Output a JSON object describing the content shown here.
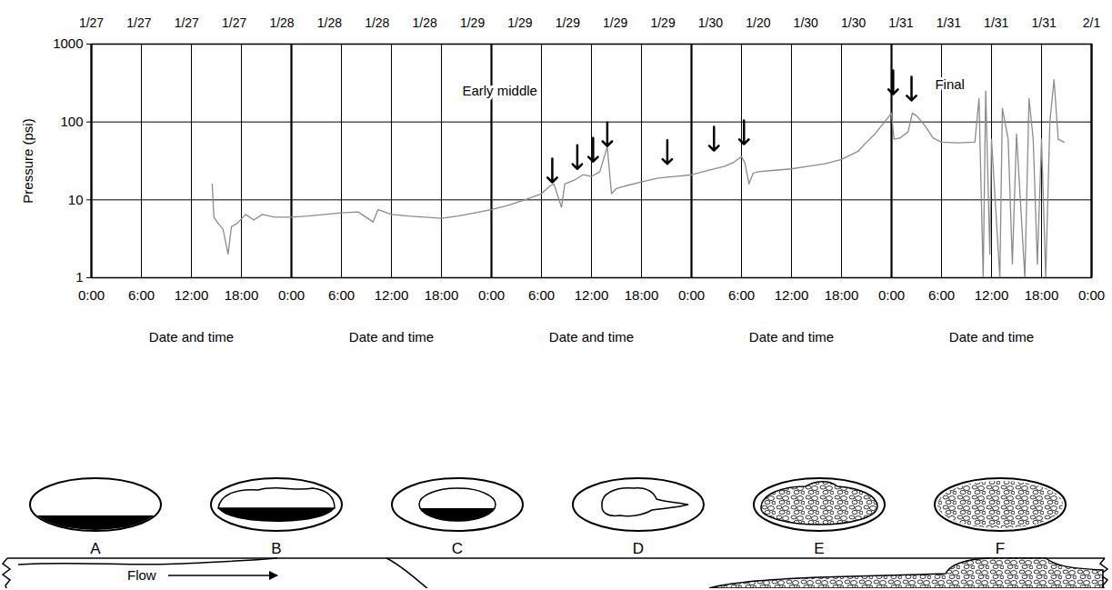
{
  "chart_data": {
    "type": "line",
    "top_labels": [
      "1/27",
      "1/27",
      "1/27",
      "1/27",
      "1/28",
      "1/28",
      "1/28",
      "1/28",
      "1/29",
      "1/29",
      "1/29",
      "1/29",
      "1/29",
      "1/30",
      "1/20",
      "1/30",
      "1/30",
      "1/31",
      "1/31",
      "1/31",
      "1/31",
      "2/1"
    ],
    "x": [
      14.5,
      14.7,
      15.2,
      15.8,
      16.4,
      16.8,
      17.5,
      18.5,
      19.5,
      20.5,
      22,
      24,
      26,
      28,
      30,
      32,
      33.8,
      34.4,
      36,
      38,
      40,
      42,
      44,
      46,
      48,
      50,
      52,
      54,
      55,
      55.5,
      56.4,
      56.8,
      58,
      59,
      60,
      61,
      61.9,
      62.4,
      63,
      64,
      66,
      68,
      70,
      72,
      74,
      76,
      77,
      78,
      78.4,
      78.9,
      79.4,
      80,
      82,
      84,
      86,
      88,
      90,
      92,
      93,
      94,
      95,
      96,
      96.3,
      97,
      98,
      98.5,
      99,
      100,
      101,
      102,
      104,
      106,
      106.5,
      107,
      107.3,
      107.8,
      108,
      109,
      109.3,
      110,
      110.5,
      111,
      112,
      112.5,
      113,
      113.5,
      114,
      114.5,
      115,
      115.5,
      116,
      116.7
    ],
    "values": [
      16,
      6,
      5,
      4.2,
      2,
      4.5,
      5,
      6.5,
      5.5,
      6.5,
      6,
      6,
      6.2,
      6.5,
      6.8,
      7,
      5.2,
      7.5,
      6.5,
      6.2,
      6,
      5.8,
      6.2,
      6.8,
      7.5,
      8.5,
      10,
      12,
      15,
      16,
      8,
      16,
      18,
      21,
      20,
      23,
      48,
      12,
      14,
      15,
      17,
      19,
      20,
      21,
      24,
      27,
      30,
      36,
      30,
      16,
      22,
      23,
      24,
      25,
      27,
      29,
      33,
      42,
      55,
      70,
      95,
      130,
      60,
      62,
      75,
      130,
      120,
      90,
      62,
      55,
      54,
      55,
      200,
      1,
      250,
      2,
      60,
      1,
      150,
      60,
      1.5,
      70,
      1,
      200,
      60,
      1.5,
      60,
      1,
      100,
      350,
      60,
      55
    ],
    "color": "#8c8c8c",
    "xlim": [
      0,
      120
    ],
    "xticks": [
      {
        "value": 0,
        "label": "0:00"
      },
      {
        "value": 6,
        "label": "6:00"
      },
      {
        "value": 12,
        "label": "12:00"
      },
      {
        "value": 18,
        "label": "18:00"
      },
      {
        "value": 24,
        "label": "0:00"
      },
      {
        "value": 30,
        "label": "6:00"
      },
      {
        "value": 36,
        "label": "12:00"
      },
      {
        "value": 42,
        "label": "18:00"
      },
      {
        "value": 48,
        "label": "0:00"
      },
      {
        "value": 54,
        "label": "6:00"
      },
      {
        "value": 60,
        "label": "12:00"
      },
      {
        "value": 66,
        "label": "18:00"
      },
      {
        "value": 72,
        "label": "0:00"
      },
      {
        "value": 78,
        "label": "6:00"
      },
      {
        "value": 84,
        "label": "12:00"
      },
      {
        "value": 90,
        "label": "18:00"
      },
      {
        "value": 96,
        "label": "0:00"
      },
      {
        "value": 102,
        "label": "6:00"
      },
      {
        "value": 108,
        "label": "12:00"
      },
      {
        "value": 114,
        "label": "18:00"
      },
      {
        "value": 120,
        "label": "0:00"
      }
    ],
    "ylim": [
      1,
      1000
    ],
    "yticks": [
      1,
      10,
      100,
      1000
    ],
    "log": "y",
    "grid": true,
    "x_labels": [
      "Date and time",
      "Date and time",
      "Date and time",
      "Date and time",
      "Date and time"
    ],
    "y_label": "Pressure (psi)",
    "annotations": [
      {
        "text": "Early middle",
        "x": 49,
        "y": 250
      },
      {
        "text": "Final",
        "x": 103,
        "y": 300
      }
    ],
    "arrows": {
      "x": [
        55.3,
        58.3,
        60.2,
        61.9,
        69.1,
        74.7,
        78.3,
        96.2,
        98.4
      ],
      "y": [
        16.8,
        25,
        31,
        49,
        29,
        43,
        52,
        228,
        189
      ]
    }
  },
  "diagram": {
    "panels": [
      "A",
      "B",
      "C",
      "D",
      "E",
      "F"
    ],
    "flow_label": "Flow"
  }
}
